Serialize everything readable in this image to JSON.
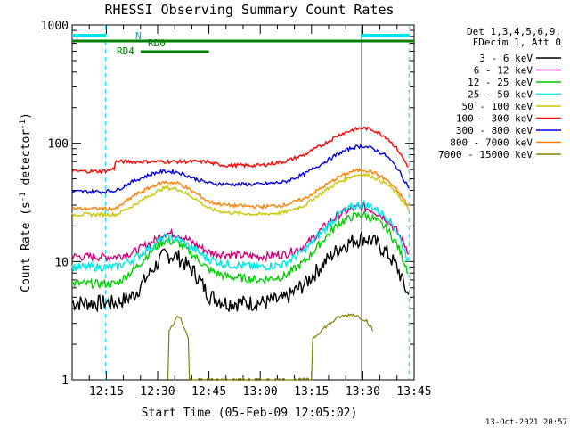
{
  "chart_data": {
    "type": "line",
    "title": "RHESSI Observing Summary Count Rates",
    "xlabel": "Start Time (05-Feb-09 12:05:02)",
    "ylabel_main": "Count Rate (s",
    "ylabel_sup1": "-1",
    "ylabel_mid": " detector",
    "ylabel_sup2": "-1",
    "ylabel_end": ")",
    "yscale": "log",
    "ylim": [
      1,
      1000
    ],
    "xlim_minutes": [
      0,
      100
    ],
    "x_ticks": [
      {
        "label": "12:15",
        "min": 10
      },
      {
        "label": "12:30",
        "min": 25
      },
      {
        "label": "12:45",
        "min": 40
      },
      {
        "label": "13:00",
        "min": 55
      },
      {
        "label": "13:15",
        "min": 70
      },
      {
        "label": "13:30",
        "min": 85
      },
      {
        "label": "13:45",
        "min": 100
      }
    ],
    "y_ticks": [
      {
        "label": "1",
        "value": 1
      },
      {
        "label": "10",
        "value": 10
      },
      {
        "label": "100",
        "value": 100
      },
      {
        "label": "1000",
        "value": 1000
      }
    ],
    "legend_header": [
      "Det 1,3,4,5,6,9,",
      "FDecim 1, Att 0"
    ],
    "annotations": {
      "n_label": "N",
      "rd0_label": "RD0",
      "rd4_label": "RD4"
    },
    "timestamp": "13-Oct-2021 20:57",
    "series": [
      {
        "name": "3 - 6 keV",
        "color": "#000000",
        "x": [
          0,
          9,
          13,
          18,
          24,
          27,
          31,
          36,
          40,
          45,
          55,
          62,
          68,
          74,
          78,
          82,
          85,
          88,
          92,
          95,
          98.5
        ],
        "y": [
          4.5,
          4.5,
          4.5,
          5.2,
          9,
          11.5,
          11,
          8,
          5.2,
          4.5,
          4.5,
          4.8,
          6.5,
          10,
          13,
          15,
          16,
          15,
          12,
          9,
          5
        ]
      },
      {
        "name": "6 - 12 keV",
        "color": "#d0007c",
        "x": [
          0,
          9,
          13,
          18,
          24,
          27,
          31,
          36,
          40,
          45,
          55,
          62,
          68,
          74,
          78,
          82,
          85,
          88,
          92,
          95,
          98.5
        ],
        "y": [
          11,
          11,
          11,
          12,
          15,
          17.5,
          17,
          14,
          12,
          11.5,
          11,
          11.5,
          13.5,
          20,
          25,
          28,
          29,
          27,
          23,
          18,
          12
        ]
      },
      {
        "name": "12 - 25 keV",
        "color": "#00cc00",
        "x": [
          0,
          9,
          13,
          18,
          24,
          27,
          31,
          36,
          40,
          45,
          55,
          62,
          68,
          74,
          78,
          82,
          85,
          88,
          92,
          95,
          98.5
        ],
        "y": [
          6.5,
          6.5,
          6.5,
          8.5,
          13,
          15,
          14.5,
          11,
          8.5,
          7.5,
          7,
          7.5,
          10,
          16,
          21,
          24,
          25,
          23,
          19,
          14,
          8
        ]
      },
      {
        "name": "25 - 50 keV",
        "color": "#00e6e6",
        "x": [
          0,
          9,
          13,
          18,
          24,
          27,
          31,
          36,
          40,
          45,
          55,
          62,
          68,
          74,
          78,
          82,
          85,
          88,
          92,
          95,
          98.5
        ],
        "y": [
          9,
          9,
          9,
          10.5,
          14,
          16,
          15.5,
          12.5,
          10.5,
          9.5,
          9,
          9.5,
          12.5,
          19,
          25,
          29,
          31,
          29,
          24,
          18,
          10
        ]
      },
      {
        "name": "50 - 100 keV",
        "color": "#c8c800",
        "x": [
          0,
          9,
          13,
          18,
          24,
          27,
          31,
          36,
          40,
          45,
          55,
          62,
          68,
          74,
          78,
          82,
          85,
          88,
          92,
          95,
          98.5
        ],
        "y": [
          25,
          25,
          25,
          30,
          38,
          42,
          41,
          34,
          28,
          26,
          25,
          26,
          30,
          40,
          47,
          53,
          55,
          52,
          45,
          38,
          27
        ]
      },
      {
        "name": "100 - 300 keV",
        "color": "#ff0000",
        "x": [
          0,
          9,
          12.5,
          12.6,
          20,
          30,
          35,
          40,
          40.1,
          45,
          55,
          62,
          68,
          74,
          78,
          82,
          85,
          88,
          92,
          95,
          98.5
        ],
        "y": [
          58,
          58,
          61,
          70,
          70,
          70,
          70,
          70,
          68,
          65,
          65,
          70,
          80,
          100,
          118,
          130,
          135,
          130,
          112,
          90,
          62
        ]
      },
      {
        "name": "300 - 800 keV",
        "color": "#0000e0",
        "x": [
          0,
          9,
          13,
          18,
          24,
          27,
          31,
          36,
          40,
          45,
          55,
          62,
          68,
          74,
          78,
          82,
          85,
          88,
          92,
          95,
          98.5
        ],
        "y": [
          39,
          39,
          40,
          48,
          56,
          58,
          57,
          50,
          46,
          45,
          45,
          47,
          55,
          70,
          82,
          92,
          95,
          90,
          78,
          62,
          42
        ]
      },
      {
        "name": "800 - 7000 keV",
        "color": "#ff8000",
        "x": [
          0,
          9,
          13,
          18,
          24,
          27,
          31,
          36,
          40,
          45,
          55,
          62,
          68,
          74,
          78,
          82,
          85,
          88,
          92,
          95,
          98.5
        ],
        "y": [
          28,
          28,
          28,
          36,
          44,
          47,
          46,
          38,
          32,
          30,
          29,
          30,
          34,
          44,
          52,
          58,
          60,
          57,
          49,
          40,
          29
        ]
      },
      {
        "name": "7000 - 15000 keV",
        "color": "#808000",
        "x": [
          28,
          28.1,
          31,
          32,
          34,
          34.1,
          70,
          70.1,
          74,
          78,
          82,
          86,
          88,
          88.1
        ],
        "y": [
          1,
          2.5,
          3.5,
          3.2,
          2.2,
          1,
          1,
          2.2,
          2.8,
          3.4,
          3.6,
          3.2,
          2.6,
          1
        ]
      }
    ]
  }
}
